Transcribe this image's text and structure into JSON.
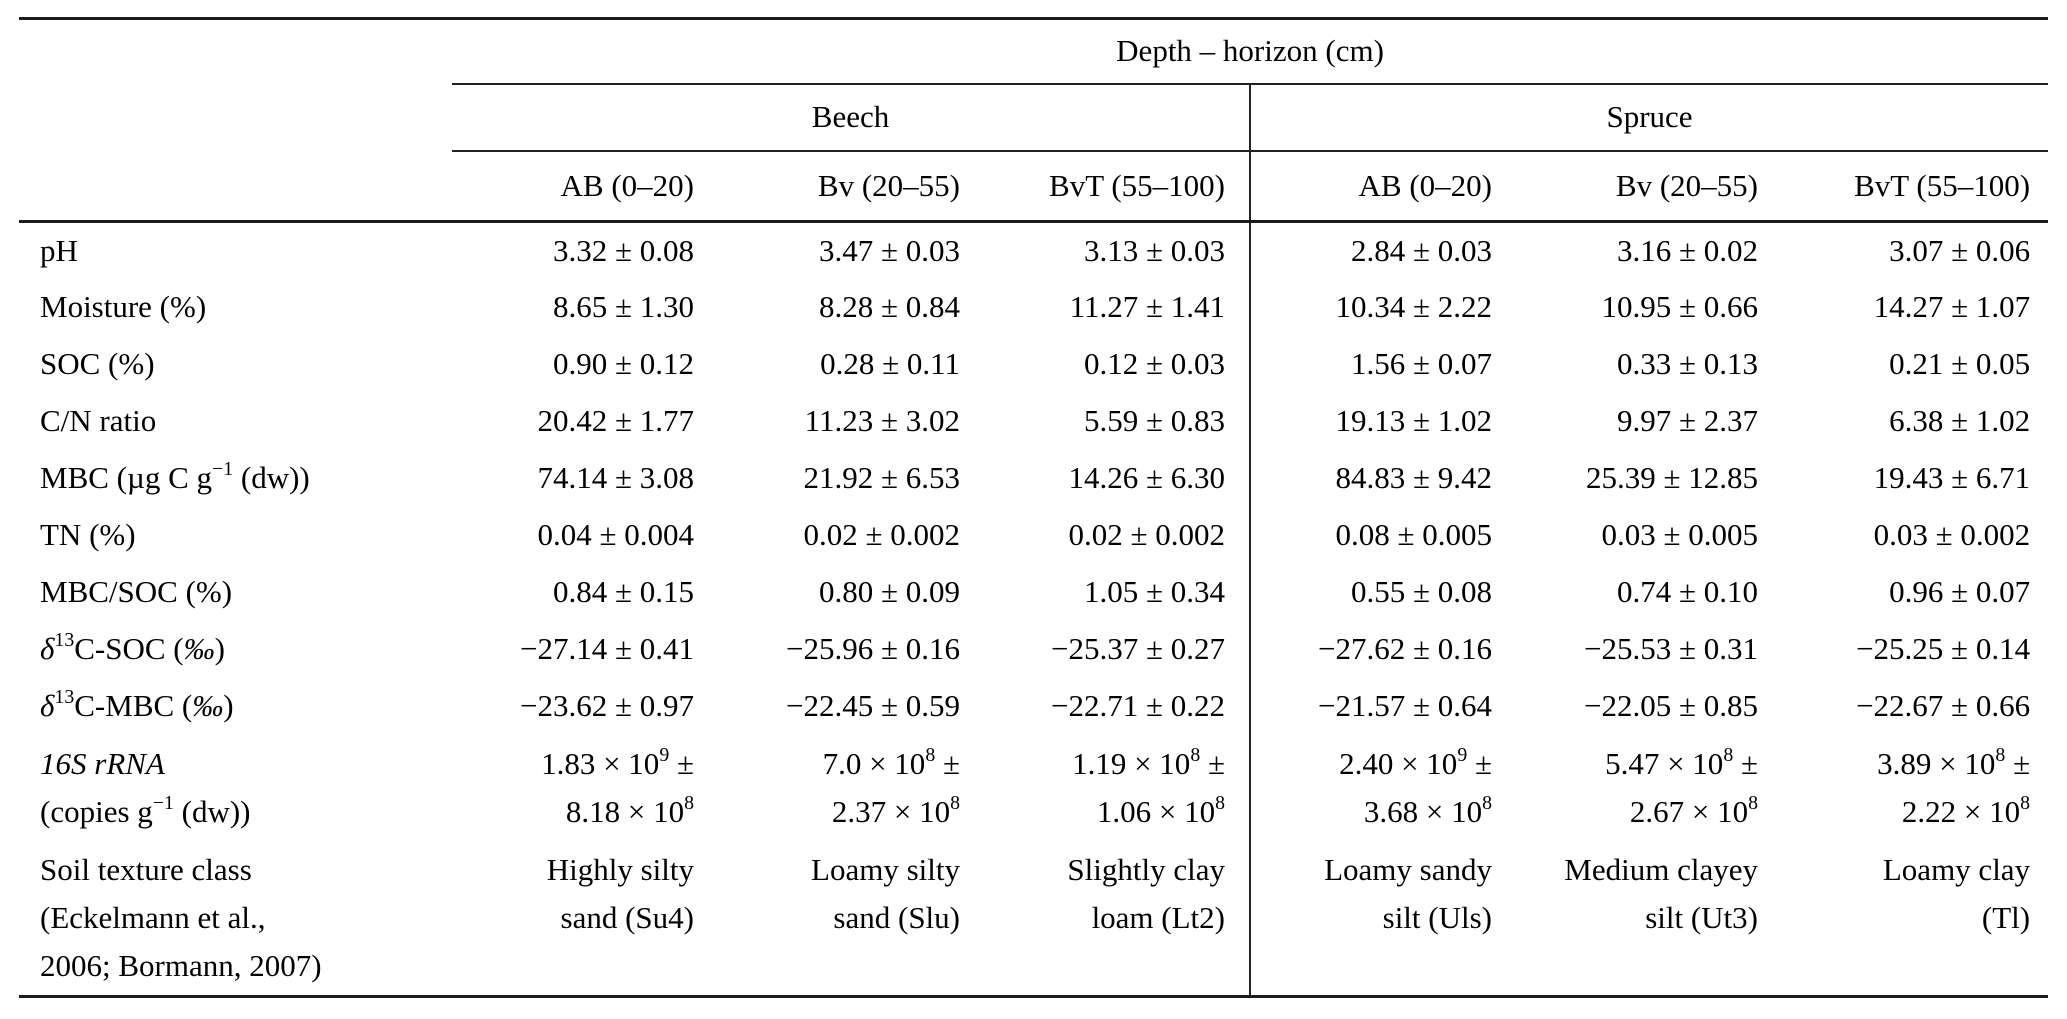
{
  "table": {
    "top_header": "Depth – horizon (cm)",
    "groups": [
      {
        "label": "Beech"
      },
      {
        "label": "Spruce"
      }
    ],
    "column_headers": [
      "AB (0–20)",
      "Bv (20–55)",
      "BvT (55–100)",
      "AB (0–20)",
      "Bv (20–55)",
      "BvT (55–100)"
    ],
    "rows": [
      {
        "id": "ph",
        "label": [
          "pH"
        ],
        "values": [
          [
            "3.32 ± 0.08"
          ],
          [
            "3.47 ± 0.03"
          ],
          [
            "3.13 ± 0.03"
          ],
          [
            "2.84 ± 0.03"
          ],
          [
            "3.16 ± 0.02"
          ],
          [
            "3.07 ± 0.06"
          ]
        ]
      },
      {
        "id": "moisture",
        "label": [
          "Moisture (%)"
        ],
        "values": [
          [
            "8.65 ± 1.30"
          ],
          [
            "8.28 ± 0.84"
          ],
          [
            "11.27 ± 1.41"
          ],
          [
            "10.34 ± 2.22"
          ],
          [
            "10.95 ± 0.66"
          ],
          [
            "14.27 ± 1.07"
          ]
        ]
      },
      {
        "id": "soc",
        "label": [
          "SOC (%)"
        ],
        "values": [
          [
            "0.90 ± 0.12"
          ],
          [
            "0.28 ± 0.11"
          ],
          [
            "0.12 ± 0.03"
          ],
          [
            "1.56 ± 0.07"
          ],
          [
            "0.33 ± 0.13"
          ],
          [
            "0.21 ± 0.05"
          ]
        ]
      },
      {
        "id": "cn-ratio",
        "label": [
          "C/N ratio"
        ],
        "values": [
          [
            "20.42 ± 1.77"
          ],
          [
            "11.23 ± 3.02"
          ],
          [
            "5.59 ± 0.83"
          ],
          [
            "19.13 ± 1.02"
          ],
          [
            "9.97 ± 2.37"
          ],
          [
            "6.38 ± 1.02"
          ]
        ]
      },
      {
        "id": "mbc",
        "label": [
          "MBC (µg C g^−1^ (dw))"
        ],
        "values": [
          [
            "74.14 ± 3.08"
          ],
          [
            "21.92 ± 6.53"
          ],
          [
            "14.26 ± 6.30"
          ],
          [
            "84.83 ± 9.42"
          ],
          [
            "25.39 ± 12.85"
          ],
          [
            "19.43 ± 6.71"
          ]
        ]
      },
      {
        "id": "tn",
        "label": [
          "TN (%)"
        ],
        "values": [
          [
            "0.04 ± 0.004"
          ],
          [
            "0.02 ± 0.002"
          ],
          [
            "0.02 ± 0.002"
          ],
          [
            "0.08 ± 0.005"
          ],
          [
            "0.03 ± 0.005"
          ],
          [
            "0.03 ± 0.002"
          ]
        ]
      },
      {
        "id": "mbc-soc",
        "label": [
          "MBC/SOC (%)"
        ],
        "values": [
          [
            "0.84 ± 0.15"
          ],
          [
            "0.80 ± 0.09"
          ],
          [
            "1.05 ± 0.34"
          ],
          [
            "0.55 ± 0.08"
          ],
          [
            "0.74 ± 0.10"
          ],
          [
            "0.96 ± 0.07"
          ]
        ]
      },
      {
        "id": "d13c-soc",
        "label": [
          "~δ~^13^C-SOC (~‰~)"
        ],
        "values": [
          [
            "−27.14 ± 0.41"
          ],
          [
            "−25.96 ± 0.16"
          ],
          [
            "−25.37 ± 0.27"
          ],
          [
            "−27.62 ± 0.16"
          ],
          [
            "−25.53 ± 0.31"
          ],
          [
            "−25.25 ± 0.14"
          ]
        ]
      },
      {
        "id": "d13c-mbc",
        "label": [
          "~δ~^13^C-MBC (~‰~)"
        ],
        "values": [
          [
            "−23.62 ± 0.97"
          ],
          [
            "−22.45 ± 0.59"
          ],
          [
            "−22.71 ± 0.22"
          ],
          [
            "−21.57 ± 0.64"
          ],
          [
            "−22.05 ± 0.85"
          ],
          [
            "−22.67 ± 0.66"
          ]
        ]
      },
      {
        "id": "16s-rrna",
        "label": [
          "~16S rRNA~",
          "(copies g^−1^ (dw))"
        ],
        "values": [
          [
            "1.83 × 10^9^ ±",
            "8.18 × 10^8^"
          ],
          [
            "7.0 × 10^8^ ±",
            "2.37 × 10^8^"
          ],
          [
            "1.19 × 10^8^ ±",
            "1.06 × 10^8^"
          ],
          [
            "2.40 × 10^9^ ±",
            "3.68 × 10^8^"
          ],
          [
            "5.47 × 10^8^ ±",
            "2.67 × 10^8^"
          ],
          [
            "3.89 × 10^8^ ±",
            "2.22 × 10^8^"
          ]
        ]
      },
      {
        "id": "soil-texture",
        "label": [
          "Soil texture class",
          "(Eckelmann et al.,",
          "2006; Bormann, 2007)"
        ],
        "values": [
          [
            "Highly silty",
            "sand (Su4)"
          ],
          [
            "Loamy silty",
            "sand (Slu)"
          ],
          [
            "Slightly clay",
            "loam (Lt2)"
          ],
          [
            "Loamy sandy",
            "silt (Uls)"
          ],
          [
            "Medium clayey",
            "silt (Ut3)"
          ],
          [
            "Loamy clay",
            "(Tl)"
          ]
        ]
      }
    ]
  },
  "styles": {
    "rule_color": "#1b1b1b",
    "background": "#ffffff",
    "text_color": "#000000"
  }
}
